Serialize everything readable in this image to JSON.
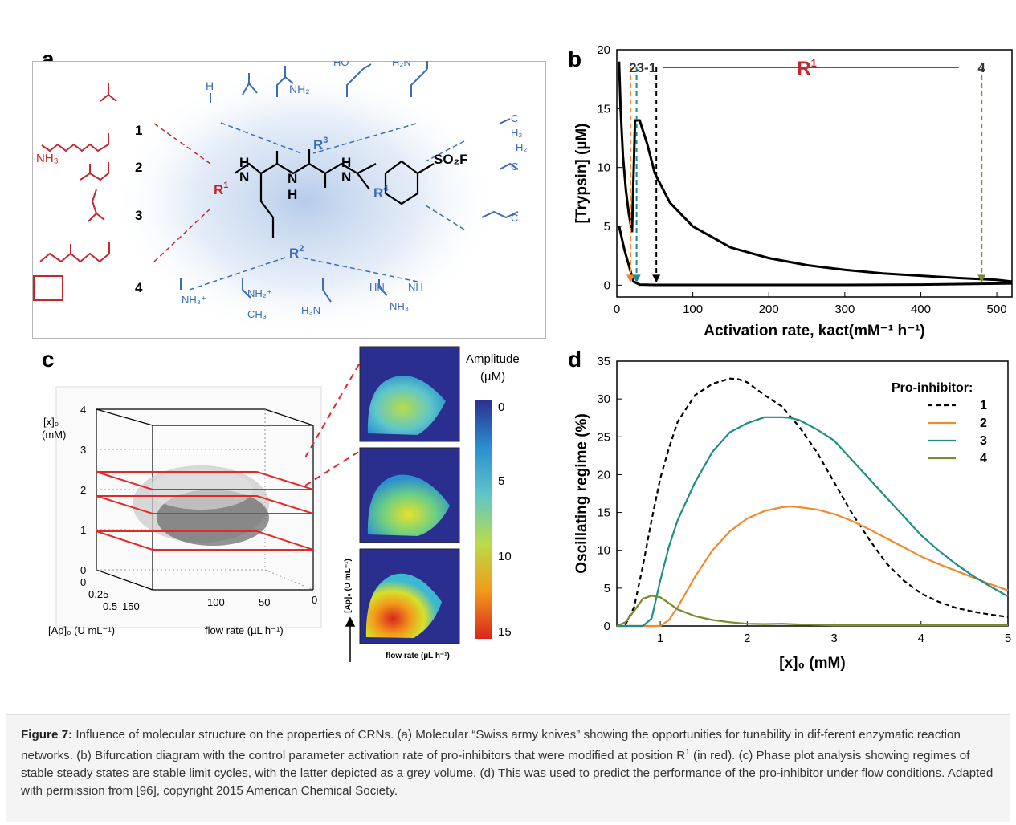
{
  "panels": {
    "a": "a",
    "b": "b",
    "c": "c",
    "d": "d"
  },
  "panel_a": {
    "left_labels": [
      "1",
      "2",
      "3",
      "4"
    ],
    "r_labels": {
      "r1": "R",
      "r1_sup": "1",
      "r2": "R",
      "r2_sup": "2",
      "r3": "R",
      "r3_sup": "3",
      "r4": "R",
      "r4_sup": "4"
    },
    "top_groups": [
      "H",
      "NH₂",
      "HO",
      "H₂N"
    ],
    "core_atoms": {
      "n1": "H",
      "n1b": "N",
      "n2": "N",
      "n2h": "H",
      "n3": "H",
      "n3b": "N",
      "so2f": "SO₂F"
    },
    "bottom_groups": [
      "NH₃⁺",
      "NH₂⁺",
      "CH₃",
      "HN",
      "NH",
      "NH₃",
      "H₃N"
    ],
    "right_groups": [
      "C",
      "H₂",
      "C",
      "H₂",
      "C",
      "C"
    ]
  },
  "panel_c": {
    "y_axis": "[x]₀",
    "y_unit": "(mM)",
    "y_ticks": [
      "0",
      "1",
      "2",
      "3",
      "4"
    ],
    "ap_ticks": [
      "0",
      "0.25",
      "0.5"
    ],
    "flow_ticks": [
      "150",
      "100",
      "50",
      "0"
    ],
    "ap_label": "[Ap]₀ (U mL⁻¹)",
    "flow_label": "flow rate (µL h⁻¹)",
    "inset_ylabel": "[Ap]₀ (U mL⁻¹)",
    "inset_xlabel": "flow rate (µL h⁻¹)",
    "colorbar_title": "Amplitude",
    "colorbar_unit": "(µM)",
    "colorbar_ticks": [
      "0",
      "5",
      "10",
      "15"
    ]
  },
  "colors": {
    "black": "#000000",
    "orange": "#f08a2c",
    "teal": "#1e8c8a",
    "olive": "#7a8a2c",
    "red": "#c2272d",
    "blue": "#3b6db3"
  },
  "chart_data": [
    {
      "type": "line",
      "panel": "b",
      "title": "",
      "xlabel": "Activation rate, kact(mM⁻¹ h⁻¹)",
      "ylabel": "[Trypsin] (µM)",
      "xlim": [
        0,
        520
      ],
      "ylim": [
        -1,
        20
      ],
      "xticks": [
        "0",
        "100",
        "200",
        "300",
        "400",
        "500"
      ],
      "yticks": [
        "0",
        "5",
        "10",
        "15",
        "20"
      ],
      "annotations": {
        "left": "23-1",
        "r1": "R",
        "r1_sup": "1",
        "right": "4"
      },
      "upper_branch": {
        "x": [
          3,
          5,
          8,
          12,
          16,
          20,
          24,
          30,
          40,
          50,
          70,
          100,
          150,
          200,
          250,
          300,
          350,
          400,
          450,
          500,
          520
        ],
        "y": [
          19,
          15,
          11,
          8,
          6,
          4.5,
          14,
          14,
          12,
          9.5,
          7,
          5,
          3.2,
          2.3,
          1.7,
          1.3,
          1.0,
          0.8,
          0.6,
          0.45,
          0.3
        ]
      },
      "lower_branch": {
        "x": [
          3,
          10,
          18,
          22,
          30,
          50,
          100,
          200,
          300,
          400,
          520
        ],
        "y": [
          5,
          3,
          1.2,
          0.3,
          0.05,
          0.02,
          0.02,
          0.02,
          0.02,
          0.05,
          0.15
        ]
      },
      "markers": [
        {
          "name": "2",
          "x": 18,
          "color": "#f08a2c"
        },
        {
          "name": "3",
          "x": 26,
          "color": "#1e8c8a"
        },
        {
          "name": "1",
          "x": 52,
          "color": "#000000"
        },
        {
          "name": "4",
          "x": 480,
          "color": "#7a8a2c"
        }
      ]
    },
    {
      "type": "line",
      "panel": "d",
      "title": "",
      "xlabel": "[x]₀ (mM)",
      "ylabel": "Oscillating regime (%)",
      "xlim": [
        0.5,
        5
      ],
      "ylim": [
        0,
        35
      ],
      "xticks": [
        "1",
        "2",
        "3",
        "4",
        "5"
      ],
      "yticks": [
        "0",
        "5",
        "10",
        "15",
        "20",
        "25",
        "30",
        "35"
      ],
      "legend_title": "Pro-inhibitor:",
      "legend_position": "top-right",
      "series": [
        {
          "name": "1",
          "color": "#000000",
          "dashed": true,
          "x": [
            0.5,
            0.6,
            0.7,
            0.8,
            0.9,
            1.0,
            1.1,
            1.2,
            1.4,
            1.6,
            1.8,
            1.9,
            2.0,
            2.2,
            2.4,
            2.6,
            2.8,
            3.0,
            3.2,
            3.4,
            3.6,
            3.8,
            4.0,
            4.2,
            4.4,
            4.6,
            4.8,
            5.0
          ],
          "y": [
            0,
            0.2,
            2.5,
            8,
            14,
            19.5,
            23.5,
            27,
            30.5,
            32,
            32.7,
            32.6,
            32.2,
            30.5,
            29,
            26.3,
            23,
            19,
            15,
            11.5,
            8.3,
            6,
            4.3,
            3.2,
            2.4,
            1.9,
            1.5,
            1.2
          ]
        },
        {
          "name": "2",
          "color": "#f08a2c",
          "dashed": false,
          "x": [
            0.5,
            1.0,
            1.1,
            1.2,
            1.4,
            1.6,
            1.8,
            2.0,
            2.2,
            2.4,
            2.5,
            2.6,
            2.8,
            3.0,
            3.2,
            3.4,
            3.6,
            3.8,
            4.0,
            4.2,
            4.4,
            4.6,
            4.8,
            5.0
          ],
          "y": [
            0,
            0,
            0.8,
            2.5,
            6.5,
            10,
            12.5,
            14.2,
            15.2,
            15.7,
            15.8,
            15.7,
            15.4,
            14.8,
            13.9,
            12.8,
            11.6,
            10.4,
            9.2,
            8.2,
            7.3,
            6.4,
            5.5,
            4.7
          ]
        },
        {
          "name": "3",
          "color": "#1e8c8a",
          "dashed": false,
          "x": [
            0.5,
            0.8,
            0.9,
            1.0,
            1.1,
            1.2,
            1.4,
            1.6,
            1.8,
            2.0,
            2.2,
            2.4,
            2.5,
            2.6,
            2.8,
            3.0,
            3.2,
            3.4,
            3.6,
            3.8,
            4.0,
            4.2,
            4.4,
            4.6,
            4.8,
            5.0
          ],
          "y": [
            0,
            0,
            1,
            6,
            10.5,
            14,
            19,
            23,
            25.6,
            26.8,
            27.6,
            27.6,
            27.5,
            27.2,
            26,
            24.5,
            22,
            19.5,
            17,
            14.5,
            12,
            10,
            8.2,
            6.6,
            5.2,
            3.9
          ]
        },
        {
          "name": "4",
          "color": "#7a8a2c",
          "dashed": false,
          "x": [
            0.5,
            0.6,
            0.7,
            0.8,
            0.9,
            1.0,
            1.1,
            1.2,
            1.4,
            1.6,
            1.8,
            2.0,
            2.2,
            2.4,
            2.6,
            2.8,
            3.0,
            4.0,
            5.0
          ],
          "y": [
            0,
            0.5,
            2,
            3.6,
            4,
            3.8,
            3,
            2.2,
            1.3,
            0.8,
            0.5,
            0.3,
            0.25,
            0.3,
            0.2,
            0.15,
            0.1,
            0.1,
            0.1
          ]
        }
      ]
    }
  ],
  "caption": {
    "label": "Figure 7:",
    "text": " Influence of molecular structure on the properties of CRNs. (a) Molecular “Swiss army knives” showing the opportunities for tunability in dif-ferent enzymatic reaction networks. (b) Bifurcation diagram with the control parameter activation rate of pro-inhibitors that were modified at position ",
    "r": "R",
    "r_sup": "1",
    "text2": " (in red). (c) Phase plot analysis showing regimes of stable steady states are stable limit cycles, with the latter depicted as a grey volume. (d) This was used to predict the performance of the pro-inhibitor under flow conditions. Adapted with permission from [96], copyright 2015 American Chemical Society."
  }
}
